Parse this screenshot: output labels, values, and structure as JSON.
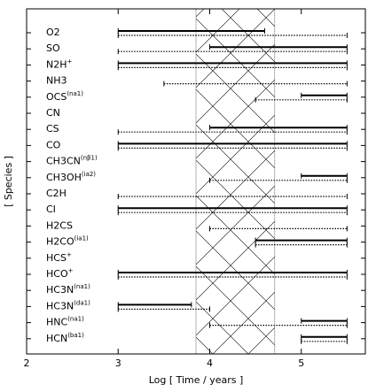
{
  "chart_data": {
    "type": "range",
    "x_label": "Log [ Time / years ]",
    "y_label": "[ Species ]",
    "categories": [
      "O2",
      "SO",
      "N2H",
      "NH3",
      "OCS",
      "CN",
      "CS",
      "CO",
      "CH3CN",
      "CH3OH",
      "C2H",
      "CI",
      "H2CS",
      "H2CO",
      "HCS",
      "HCO",
      "HC3N",
      "HC3N",
      "HNC",
      "HCN"
    ],
    "category_superscripts": [
      null,
      null,
      "+",
      null,
      "(na1)",
      null,
      null,
      null,
      "(nβ1)",
      "(ia2)",
      null,
      null,
      null,
      "(ia1)",
      "+",
      "+",
      "(na1)",
      "(da1)",
      "(na1)",
      "(ba1)"
    ],
    "series": [
      {
        "style": "solid",
        "color": "#000000",
        "values": [
          [
            3,
            4.6
          ],
          [
            4,
            5.5
          ],
          [
            3,
            5.5
          ],
          null,
          [
            5,
            5.5
          ],
          null,
          [
            4,
            5.5
          ],
          [
            3,
            5.5
          ],
          null,
          [
            5,
            5.5
          ],
          null,
          [
            3,
            5.5
          ],
          null,
          [
            4.5,
            5.5
          ],
          null,
          [
            3,
            5.5
          ],
          null,
          [
            3,
            3.8
          ],
          [
            5,
            5.5
          ],
          [
            5,
            5.5
          ]
        ]
      },
      {
        "style": "dotted",
        "color": "#000000",
        "values": [
          [
            3,
            5.5
          ],
          [
            3,
            5.5
          ],
          [
            3,
            5.5
          ],
          [
            3.5,
            5.5
          ],
          [
            4.5,
            5.5
          ],
          null,
          [
            3,
            5.5
          ],
          [
            3,
            5.5
          ],
          null,
          [
            4,
            5.5
          ],
          [
            3,
            5.5
          ],
          [
            3,
            5.5
          ],
          [
            4,
            5.5
          ],
          [
            4.5,
            5.5
          ],
          null,
          [
            3,
            5.5
          ],
          null,
          [
            3,
            4
          ],
          [
            4,
            5.5
          ],
          [
            5,
            5.5
          ]
        ]
      }
    ],
    "shaded_xrange": [
      3.85,
      4.71
    ],
    "xlim": [
      2,
      5.7
    ],
    "xticks": [
      2,
      3,
      4,
      5
    ]
  }
}
